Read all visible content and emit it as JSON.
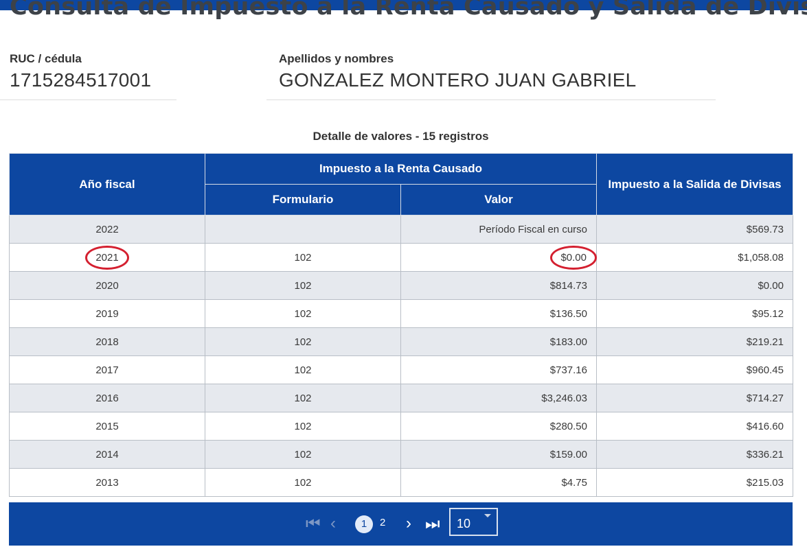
{
  "page": {
    "title": "Consulta de Impuesto a la Renta Causado y Salida de Divisas"
  },
  "taxpayer": {
    "ruc_label": "RUC / cédula",
    "ruc_value": "1715284517001",
    "name_label": "Apellidos y nombres",
    "name_value": "GONZALEZ MONTERO JUAN GABRIEL"
  },
  "table": {
    "caption": "Detalle de valores - 15 registros",
    "headers": {
      "year": "Año fiscal",
      "income_tax_group": "Impuesto a la Renta Causado",
      "form": "Formulario",
      "value": "Valor",
      "isd": "Impuesto a la Salida de Divisas"
    },
    "rows": [
      {
        "year": "2022",
        "form": "",
        "value": "Período Fiscal en curso",
        "isd": "$569.73"
      },
      {
        "year": "2021",
        "form": "102",
        "value": "$0.00",
        "isd": "$1,058.08"
      },
      {
        "year": "2020",
        "form": "102",
        "value": "$814.73",
        "isd": "$0.00"
      },
      {
        "year": "2019",
        "form": "102",
        "value": "$136.50",
        "isd": "$95.12"
      },
      {
        "year": "2018",
        "form": "102",
        "value": "$183.00",
        "isd": "$219.21"
      },
      {
        "year": "2017",
        "form": "102",
        "value": "$737.16",
        "isd": "$960.45"
      },
      {
        "year": "2016",
        "form": "102",
        "value": "$3,246.03",
        "isd": "$714.27"
      },
      {
        "year": "2015",
        "form": "102",
        "value": "$280.50",
        "isd": "$416.60"
      },
      {
        "year": "2014",
        "form": "102",
        "value": "$159.00",
        "isd": "$336.21"
      },
      {
        "year": "2013",
        "form": "102",
        "value": "$4.75",
        "isd": "$215.03"
      }
    ]
  },
  "pagination": {
    "first_icon": "first-page-icon",
    "prev_icon": "chevron-left-icon",
    "next_icon": "chevron-right-icon",
    "last_icon": "last-page-icon",
    "pages": [
      "1",
      "2"
    ],
    "current_page": "1",
    "page_size": "10",
    "page_size_icon": "dropdown-caret-icon"
  },
  "colors": {
    "primary": "#0d47a1",
    "row_stripe": "#e6e9ee",
    "annotation": "#d42030"
  }
}
